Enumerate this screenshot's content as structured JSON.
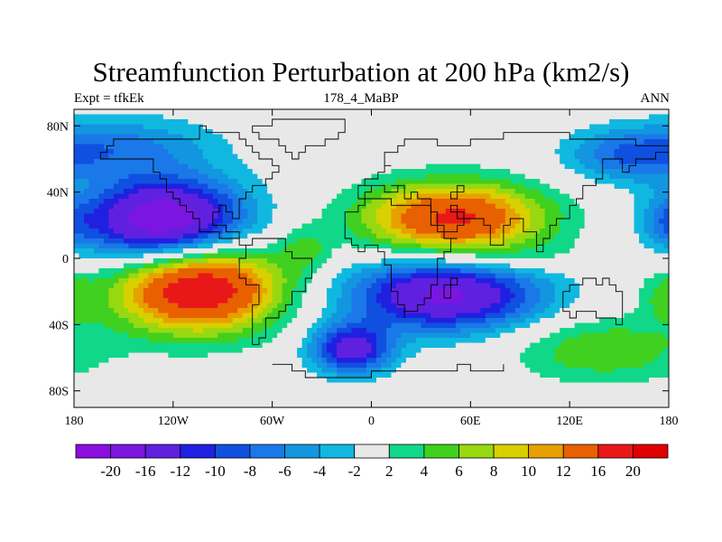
{
  "header": {
    "title": "Streamfunction Perturbation at 200 hPa (km2/s)",
    "left": "Expt = tfkEk",
    "center": "178_4_MaBP",
    "right": "ANN"
  },
  "chart_data": {
    "type": "heatmap",
    "xlim": [
      -180,
      180
    ],
    "ylim": [
      -90,
      90
    ],
    "x_ticks": [
      {
        "value": -180,
        "label": "180"
      },
      {
        "value": -120,
        "label": "120W"
      },
      {
        "value": -60,
        "label": "60W"
      },
      {
        "value": 0,
        "label": "0"
      },
      {
        "value": 60,
        "label": "60E"
      },
      {
        "value": 120,
        "label": "120E"
      },
      {
        "value": 180,
        "label": "180"
      }
    ],
    "y_ticks": [
      {
        "value": 80,
        "label": "80N"
      },
      {
        "value": 40,
        "label": "40N"
      },
      {
        "value": 0,
        "label": "0"
      },
      {
        "value": -40,
        "label": "40S"
      },
      {
        "value": -80,
        "label": "80S"
      }
    ],
    "levels": [
      -20,
      -16,
      -12,
      -10,
      -8,
      -6,
      -4,
      -2,
      2,
      4,
      6,
      8,
      10,
      12,
      16,
      20
    ],
    "level_labels": [
      "-20",
      "-16",
      "-12",
      "-10",
      "-8",
      "-6",
      "-4",
      "-2",
      "2",
      "4",
      "6",
      "8",
      "10",
      "12",
      "16",
      "20"
    ],
    "colors": [
      "#8a0ee0",
      "#7a16e0",
      "#6020e0",
      "#2020e0",
      "#1050e0",
      "#1a78e8",
      "#1296e0",
      "#10b8e0",
      "#e8e8e8",
      "#10d888",
      "#40d020",
      "#98d810",
      "#d8d000",
      "#e8a000",
      "#e86000",
      "#e81818",
      "#e00000"
    ],
    "centers": [
      {
        "lon": -125,
        "lat": 22,
        "value": -21,
        "rlon": 48,
        "rlat": 26
      },
      {
        "lon": -105,
        "lat": -17,
        "value": 21,
        "rlon": 50,
        "rlat": 27
      },
      {
        "lon": 50,
        "lat": 24,
        "value": 17,
        "rlon": 55,
        "rlat": 22
      },
      {
        "lon": 45,
        "lat": -22,
        "value": -17,
        "rlon": 58,
        "rlat": 22
      },
      {
        "lon": -12,
        "lat": -55,
        "value": -14,
        "rlon": 24,
        "rlat": 15
      },
      {
        "lon": 155,
        "lat": 62,
        "value": -7,
        "rlon": 38,
        "rlat": 16
      },
      {
        "lon": -150,
        "lat": 68,
        "value": -6,
        "rlon": 55,
        "rlat": 18
      },
      {
        "lon": 140,
        "lat": -55,
        "value": 6,
        "rlon": 55,
        "rlat": 20
      },
      {
        "lon": -40,
        "lat": 5,
        "value": 4,
        "rlon": 15,
        "rlat": 14
      },
      {
        "lon": 178,
        "lat": 22,
        "value": -4,
        "rlon": 15,
        "rlat": 15
      },
      {
        "lon": 178,
        "lat": -22,
        "value": 4,
        "rlon": 15,
        "rlat": 15
      },
      {
        "lon": 95,
        "lat": 0,
        "value": 2,
        "rlon": 50,
        "rlat": 10
      }
    ]
  }
}
